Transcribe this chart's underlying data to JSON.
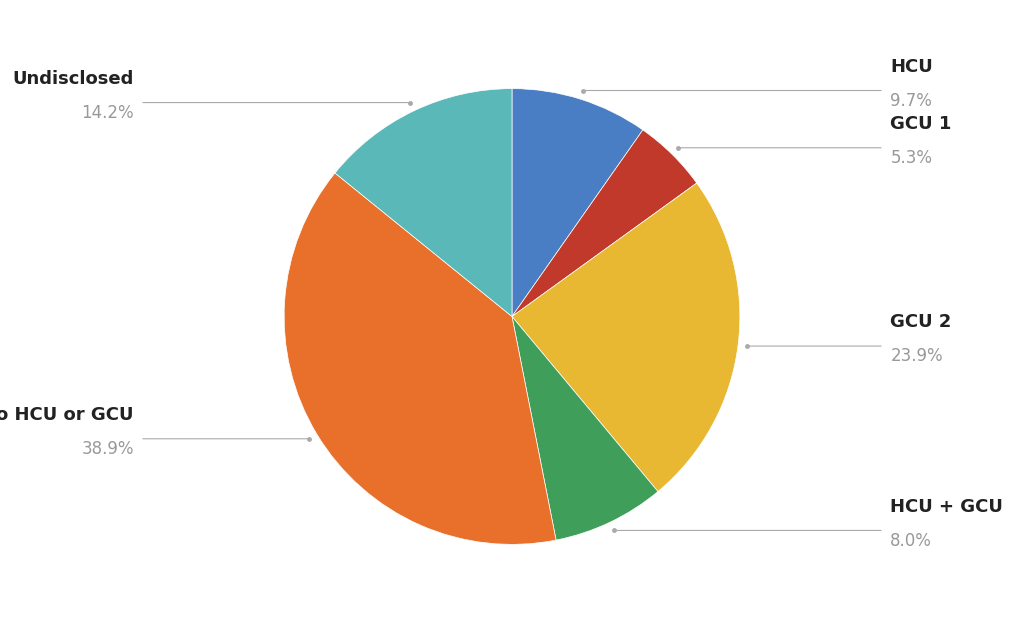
{
  "labels": [
    "HCU",
    "GCU 1",
    "GCU 2",
    "HCU + GCU",
    "No HCU or GCU",
    "Undisclosed"
  ],
  "values": [
    11,
    6,
    27,
    9,
    44,
    16
  ],
  "percentages": [
    "9.7%",
    "5.3%",
    "23.9%",
    "8.0%",
    "38.9%",
    "14.2%"
  ],
  "colors": [
    "#4a7ec4",
    "#c0392b",
    "#e8b832",
    "#3e9e5a",
    "#e8702a",
    "#5ab8b8"
  ],
  "background_color": "#ffffff",
  "label_fontsize": 13,
  "pct_fontsize": 12,
  "label_color": "#222222",
  "pct_color": "#999999",
  "line_color": "#aaaaaa",
  "startangle": 90,
  "clockwise": true,
  "figsize": [
    10.24,
    6.33
  ],
  "dpi": 100
}
